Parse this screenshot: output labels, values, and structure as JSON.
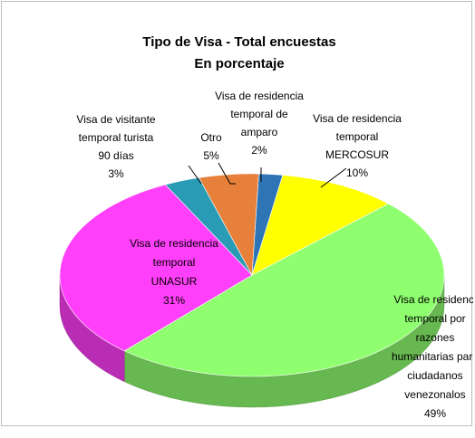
{
  "chart_data": {
    "type": "pie",
    "title": "Tipo de Visa   - Total encuestas",
    "subtitle": "En porcentaje",
    "slices": [
      {
        "label_lines": [
          "Visa de residencia",
          "temporal de",
          "amparo"
        ],
        "percent_label": "2%",
        "value": 2,
        "color": "#2e75b6"
      },
      {
        "label_lines": [
          "Visa de residencia",
          "temporal",
          "MERCOSUR"
        ],
        "percent_label": "10%",
        "value": 10,
        "color": "#ffff00"
      },
      {
        "label_lines": [
          "Visa de residenci",
          "temporal por",
          "razones",
          "humanitarias para",
          "ciudadanos",
          "venezonalos"
        ],
        "percent_label": "49%",
        "value": 49,
        "color": "#8fff6f"
      },
      {
        "label_lines": [
          "Visa de residencia",
          "temporal",
          "UNASUR"
        ],
        "percent_label": "31%",
        "value": 31,
        "color": "#ff3ff9"
      },
      {
        "label_lines": [
          "Visa de visitante",
          "temporal turista",
          "90 días"
        ],
        "percent_label": "3%",
        "value": 3,
        "color": "#2a9bb5"
      },
      {
        "label_lines": [
          "Otro"
        ],
        "percent_label": "5%",
        "value": 5,
        "color": "#e6803a"
      }
    ]
  }
}
